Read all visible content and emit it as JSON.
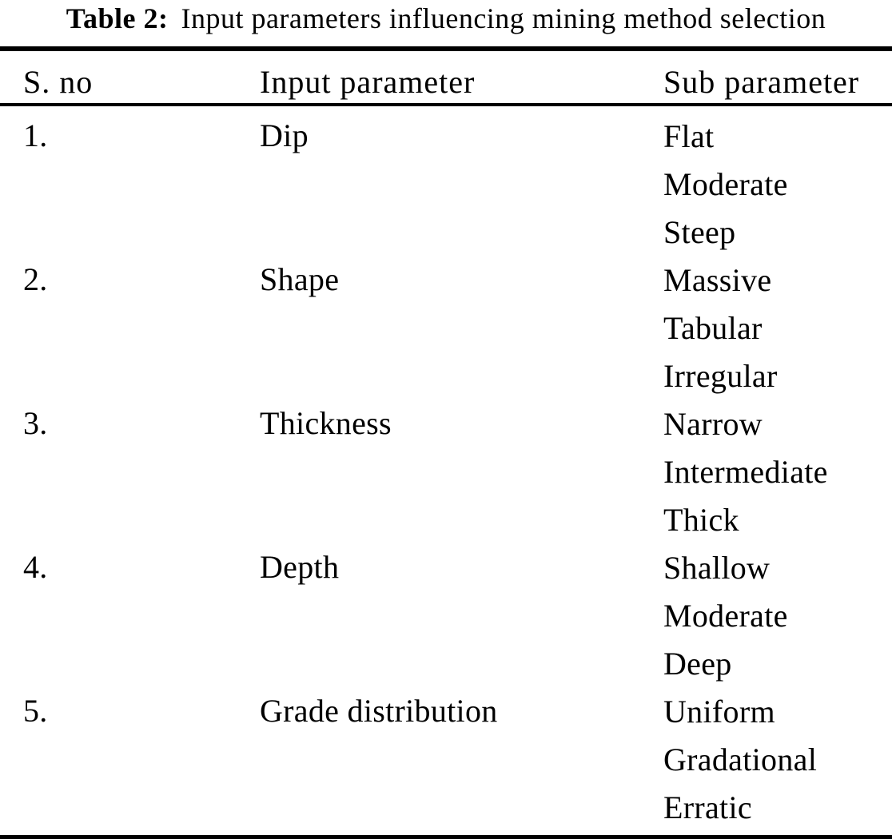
{
  "caption": {
    "label": "Table 2:",
    "text": "Input parameters influencing mining method selection"
  },
  "table": {
    "headers": [
      "S. no",
      "Input parameter",
      "Sub parameter"
    ],
    "rows": [
      {
        "sno": "1.",
        "param": "Dip",
        "subs": [
          "Flat",
          "Moderate",
          "Steep"
        ]
      },
      {
        "sno": "2.",
        "param": "Shape",
        "subs": [
          "Massive",
          "Tabular",
          "Irregular"
        ]
      },
      {
        "sno": "3.",
        "param": "Thickness",
        "subs": [
          "Narrow",
          "Intermediate",
          "Thick"
        ]
      },
      {
        "sno": "4.",
        "param": "Depth",
        "subs": [
          "Shallow",
          "Moderate",
          "Deep"
        ]
      },
      {
        "sno": "5.",
        "param": "Grade distribution",
        "subs": [
          "Uniform",
          "Gradational",
          "Erratic"
        ]
      }
    ]
  },
  "colors": {
    "text": "#000000",
    "background": "#ffffff",
    "rule": "#000000"
  }
}
